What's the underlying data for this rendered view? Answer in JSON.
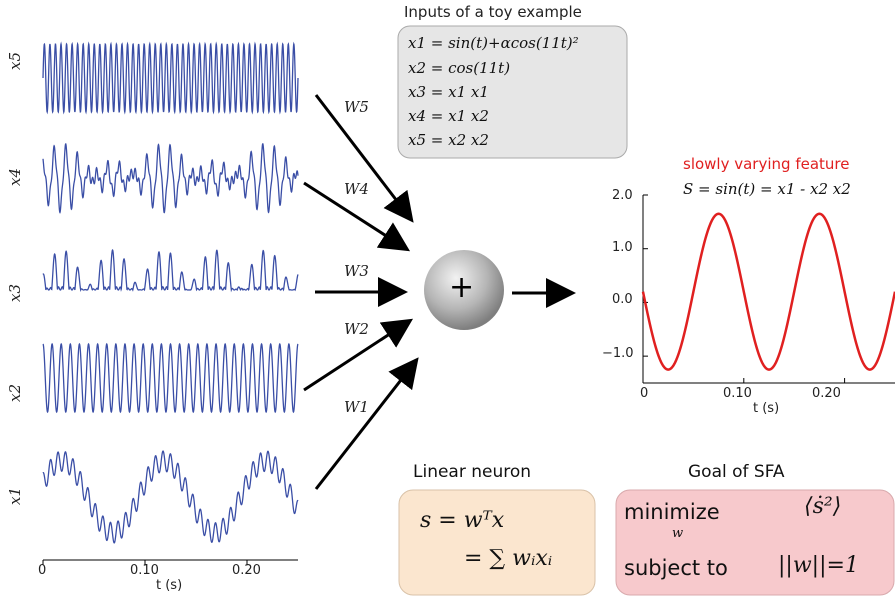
{
  "colors": {
    "signal": "#3a4ea6",
    "output": "#e02020",
    "arrow": "#000000",
    "inputs_box_fill": "#e6e6e6",
    "linear_box_fill": "#fbe6cf",
    "goal_box_fill": "#f7c9cc",
    "title_red": "#e02020"
  },
  "inputs_panel": {
    "title": "Inputs of a toy example",
    "equations": [
      "x1 = sin(t)+αcos(11t)²",
      "x2 = cos(11t)",
      "x3 = x1 x1",
      "x4 = x1 x2",
      "x5 = x2 x2"
    ]
  },
  "signals": [
    {
      "label": "x5",
      "weight": "W5"
    },
    {
      "label": "x4",
      "weight": "W4"
    },
    {
      "label": "x3",
      "weight": "W3"
    },
    {
      "label": "x2",
      "weight": "W2"
    },
    {
      "label": "x1",
      "weight": "W1"
    }
  ],
  "neuron": {
    "symbol": "+",
    "icon": "sum-node-icon"
  },
  "left_axis": {
    "ticks": [
      "0",
      "0.10",
      "0.20"
    ],
    "xlabel": "t (s)"
  },
  "output": {
    "title": "slowly varying feature",
    "equation": "S = sin(t) = x1 - x2 x2"
  },
  "chart_data": {
    "type": "line",
    "series": [
      {
        "name": "",
        "x": [
          0,
          0.025,
          0.075,
          0.125,
          0.175,
          0.225,
          0.25
        ],
        "values": [
          0.2,
          -1.25,
          1.65,
          -1.25,
          1.65,
          -1.25,
          0.2
        ]
      }
    ],
    "x_ticks": [
      "0",
      "0.10",
      "0.20"
    ],
    "y_ticks": [
      "2.0",
      "1.0",
      "0.0",
      "−1.0"
    ],
    "xlabel": "t (s)",
    "ylabel": "",
    "xlim": [
      0,
      0.25
    ],
    "ylim": [
      -1.5,
      2.0
    ]
  },
  "linear_neuron": {
    "title": "Linear neuron",
    "line1": "s = wᵀx",
    "line2": "= ∑ wᵢxᵢ"
  },
  "goal": {
    "title": "Goal of SFA",
    "minimize": "minimize",
    "minimize_sub": "w",
    "objective": "⟨ṡ²⟩",
    "subject_to": "subject to",
    "constraint": "||w||=1"
  }
}
